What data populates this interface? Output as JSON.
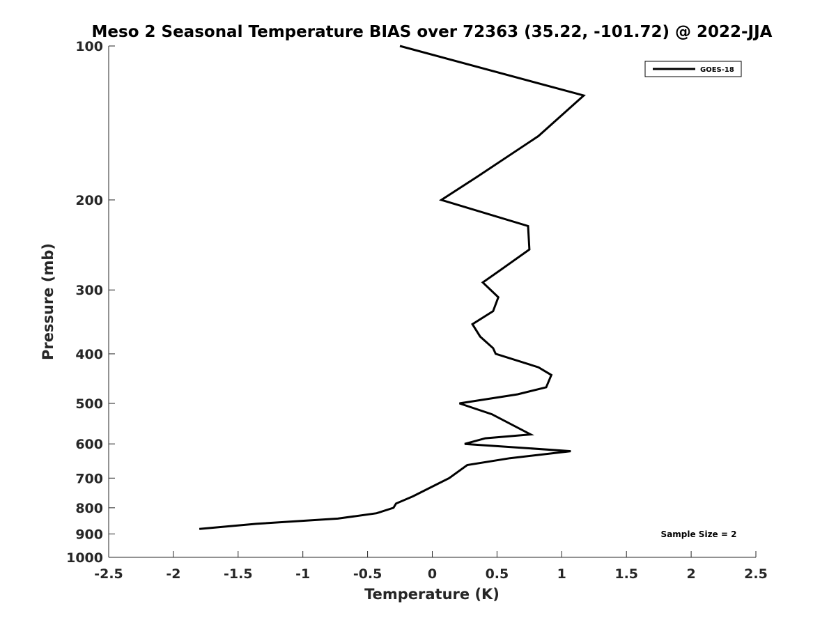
{
  "chart_data": {
    "type": "line",
    "title": "Meso 2 Seasonal Temperature BIAS over 72363 (35.22, -101.72) @ 2022-JJA",
    "xlabel": "Temperature (K)",
    "ylabel": "Pressure (mb)",
    "xlim": [
      -2.5,
      2.5
    ],
    "ylim": [
      100,
      1000
    ],
    "y_scale": "log",
    "y_reversed": true,
    "grid": false,
    "legend_position": "top-right",
    "xticks": [
      "-2.5",
      "-2",
      "-1.5",
      "-1",
      "-0.5",
      "0",
      "0.5",
      "1",
      "1.5",
      "2",
      "2.5"
    ],
    "xtick_values": [
      -2.5,
      -2,
      -1.5,
      -1,
      -0.5,
      0,
      0.5,
      1,
      1.5,
      2,
      2.5
    ],
    "yticks": [
      "100",
      "200",
      "300",
      "400",
      "500",
      "600",
      "700",
      "800",
      "900",
      "1000"
    ],
    "ytick_values": [
      100,
      200,
      300,
      400,
      500,
      600,
      700,
      800,
      900,
      1000
    ],
    "series": [
      {
        "name": "GOES-18",
        "color": "#000000",
        "points": [
          {
            "x": -0.25,
            "p": 100
          },
          {
            "x": 1.17,
            "p": 125
          },
          {
            "x": 0.82,
            "p": 150
          },
          {
            "x": 0.35,
            "p": 180
          },
          {
            "x": 0.07,
            "p": 200
          },
          {
            "x": 0.74,
            "p": 225
          },
          {
            "x": 0.75,
            "p": 250
          },
          {
            "x": 0.52,
            "p": 275
          },
          {
            "x": 0.39,
            "p": 290
          },
          {
            "x": 0.51,
            "p": 310
          },
          {
            "x": 0.47,
            "p": 330
          },
          {
            "x": 0.31,
            "p": 350
          },
          {
            "x": 0.37,
            "p": 370
          },
          {
            "x": 0.47,
            "p": 390
          },
          {
            "x": 0.49,
            "p": 400
          },
          {
            "x": 0.82,
            "p": 425
          },
          {
            "x": 0.92,
            "p": 440
          },
          {
            "x": 0.88,
            "p": 465
          },
          {
            "x": 0.66,
            "p": 480
          },
          {
            "x": 0.21,
            "p": 500
          },
          {
            "x": 0.46,
            "p": 525
          },
          {
            "x": 0.76,
            "p": 575
          },
          {
            "x": 0.41,
            "p": 585
          },
          {
            "x": 0.25,
            "p": 600
          },
          {
            "x": 1.07,
            "p": 620
          },
          {
            "x": 0.6,
            "p": 640
          },
          {
            "x": 0.27,
            "p": 660
          },
          {
            "x": 0.13,
            "p": 700
          },
          {
            "x": 0.01,
            "p": 725
          },
          {
            "x": -0.15,
            "p": 760
          },
          {
            "x": -0.28,
            "p": 785
          },
          {
            "x": -0.3,
            "p": 800
          },
          {
            "x": -0.43,
            "p": 820
          },
          {
            "x": -0.73,
            "p": 840
          },
          {
            "x": -1.36,
            "p": 860
          },
          {
            "x": -1.8,
            "p": 880
          }
        ]
      }
    ],
    "annotation": "Sample Size = 2"
  }
}
